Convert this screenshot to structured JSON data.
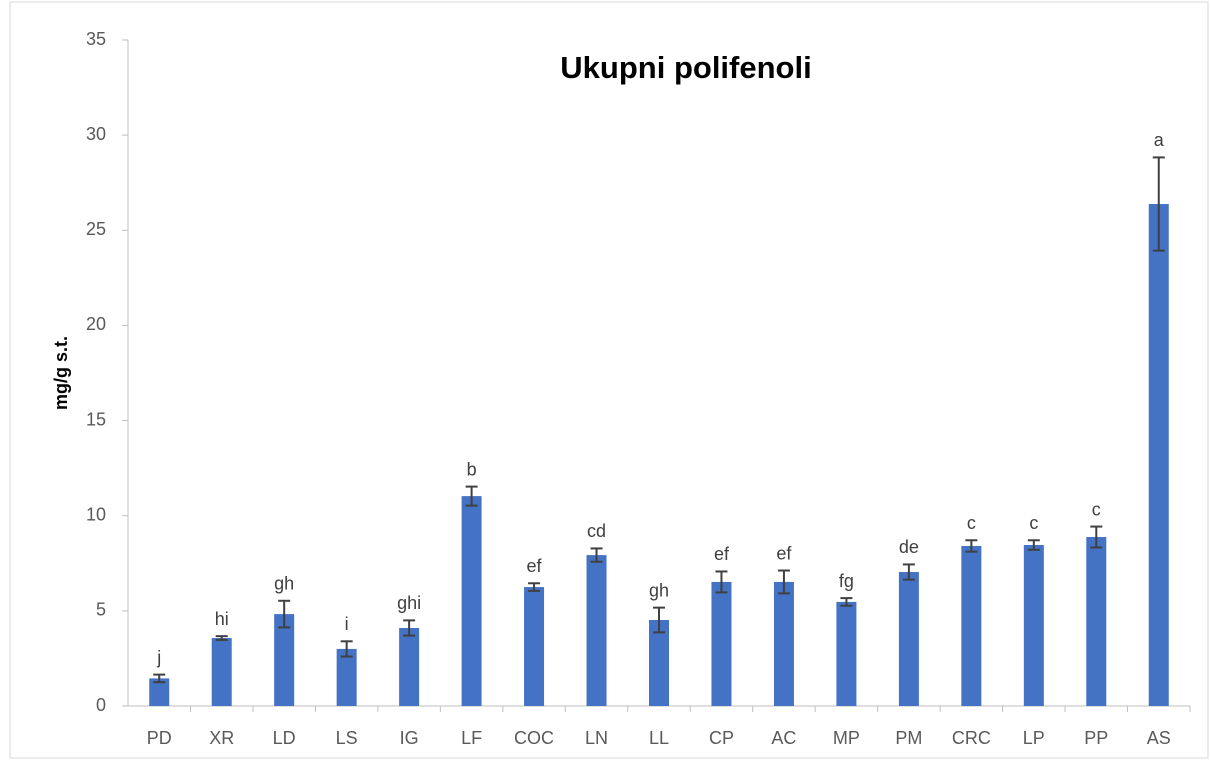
{
  "chart_data": {
    "type": "bar",
    "title": "Ukupni polifenoli",
    "y_label": "mg/g s.t.",
    "categories": [
      "PD",
      "XR",
      "LD",
      "LS",
      "IG",
      "LF",
      "COC",
      "LN",
      "LL",
      "CP",
      "AC",
      "MP",
      "PM",
      "CRC",
      "LP",
      "PP",
      "AS"
    ],
    "values": [
      1.45,
      3.57,
      4.83,
      3.0,
      4.1,
      11.03,
      6.25,
      7.93,
      4.52,
      6.52,
      6.52,
      5.47,
      7.04,
      8.41,
      8.46,
      8.88,
      26.38
    ],
    "errors": [
      0.2,
      0.1,
      0.7,
      0.4,
      0.4,
      0.5,
      0.2,
      0.35,
      0.65,
      0.55,
      0.6,
      0.2,
      0.4,
      0.3,
      0.25,
      0.55,
      2.45
    ],
    "annotations": [
      "j",
      "hi",
      "gh",
      "i",
      "ghi",
      "b",
      "ef",
      "cd",
      "gh",
      "ef",
      "ef",
      "fg",
      "de",
      "c",
      "c",
      "c",
      "a"
    ],
    "color": "#4472c4",
    "error_color": "#404040",
    "ylim": [
      0,
      35
    ],
    "yticks": [
      0,
      5,
      10,
      15,
      20,
      25,
      30,
      35
    ],
    "grid": false
  }
}
